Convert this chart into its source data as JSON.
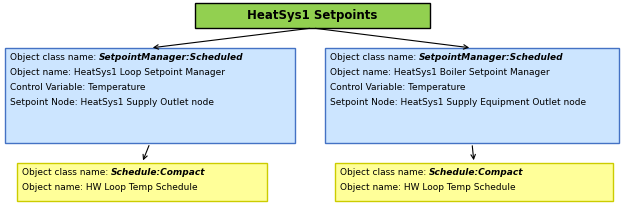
{
  "title": "HeatSys1 Setpoints",
  "title_fc": "#92D050",
  "title_ec": "#000000",
  "box1_fc": "#CCE5FF",
  "box1_ec": "#4472C4",
  "box1_lines": [
    [
      "Object class name: ",
      "SetpointManager:Scheduled"
    ],
    [
      "Object name: HeatSys1 Loop Setpoint Manager",
      ""
    ],
    [
      "Control Variable: Temperature",
      ""
    ],
    [
      "Setpoint Node: HeatSys1 Supply Outlet node",
      ""
    ]
  ],
  "box2_fc": "#CCE5FF",
  "box2_ec": "#4472C4",
  "box2_lines": [
    [
      "Object class name: ",
      "SetpointManager:Scheduled"
    ],
    [
      "Object name: HeatSys1 Boiler Setpoint Manager",
      ""
    ],
    [
      "Control Variable: Temperature",
      ""
    ],
    [
      "Setpoint Node: HeatSys1 Supply Equipment Outlet node",
      ""
    ]
  ],
  "box3_fc": "#FFFF99",
  "box3_ec": "#CCCC00",
  "box3_lines": [
    [
      "Object class name: ",
      "Schedule:Compact"
    ],
    [
      "Object name: HW Loop Temp Schedule",
      ""
    ]
  ],
  "box4_fc": "#FFFF99",
  "box4_ec": "#CCCC00",
  "box4_lines": [
    [
      "Object class name: ",
      "Schedule:Compact"
    ],
    [
      "Object name: HW Loop Temp Schedule",
      ""
    ]
  ],
  "arrow_color": "#000000",
  "font_size": 6.5,
  "title_font_size": 8.5,
  "bg_color": "#FFFFFF"
}
